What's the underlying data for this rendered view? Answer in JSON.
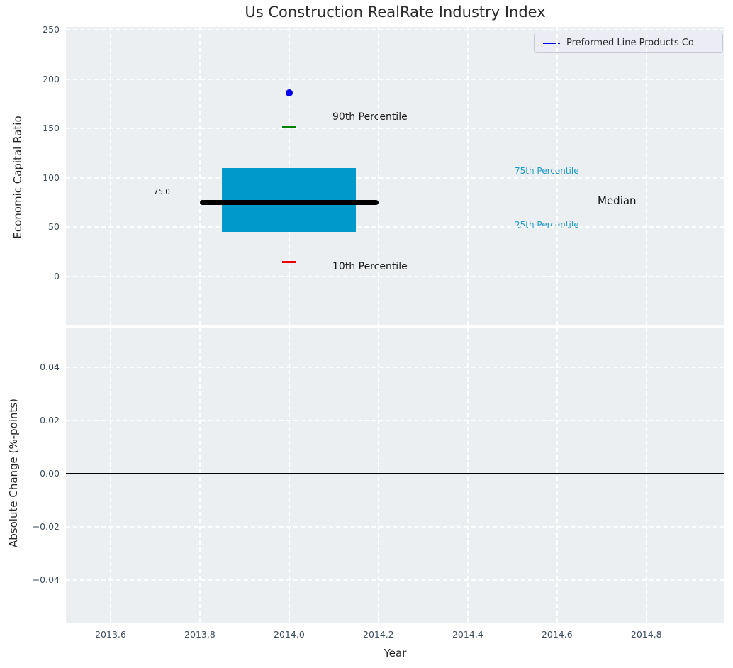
{
  "figure": {
    "title": "Us Construction RealRate Industry Index"
  },
  "legend": {
    "label": "Preformed Line Products Co",
    "line_color": "#0000ee"
  },
  "top_plot": {
    "ylabel": "Economic Capital Ratio",
    "ytick_labels": [
      "250",
      "200",
      "150",
      "100",
      "50",
      "0"
    ],
    "annotations": {
      "p90": "90th Percentile",
      "p10": "10th Percentile",
      "p75": "75th Percentile",
      "p25": "25th Percentile",
      "median": "Median",
      "median_value": "75.0"
    }
  },
  "bottom_plot": {
    "ylabel": "Absolute Change (%-points)",
    "ytick_labels": [
      "0.04",
      "0.02",
      "0.00",
      "−0.02",
      "−0.04"
    ]
  },
  "x_axis": {
    "label": "Year",
    "tick_labels": [
      "2013.6",
      "2013.8",
      "2014.0",
      "2014.2",
      "2014.4",
      "2014.6",
      "2014.8"
    ]
  },
  "colors": {
    "axes_background": "#eceff1",
    "grid": "#ffffff",
    "box_fill": "#0099cc",
    "median_line": "#000000",
    "whisker": "#666666",
    "cap_90th": "#008000",
    "cap_10th": "#ee0000",
    "point_blue": "#0000ee",
    "percentile_label_cyan": "#1e9bc9",
    "tick_label": "#3d4d5e"
  },
  "chart_data": [
    {
      "type": "box",
      "title": "Us Construction RealRate Industry Index",
      "xlabel": "Year",
      "ylabel": "Economic Capital Ratio",
      "xlim": [
        2013.5,
        2014.975
      ],
      "ylim": [
        -50,
        253
      ],
      "xticks": [
        2013.6,
        2013.8,
        2014.0,
        2014.2,
        2014.4,
        2014.6,
        2014.8
      ],
      "yticks": [
        250,
        200,
        150,
        100,
        50,
        0
      ],
      "grid": true,
      "legend_position": "upper right",
      "legend_entries": [
        "Preformed Line Products Co"
      ],
      "boxes": [
        {
          "x": 2014.0,
          "p10": 15,
          "p25": 45,
          "median": 75,
          "p75": 110,
          "p90": 152,
          "box_halfwidth_years": 0.15,
          "median_halfwidth_years": 0.2
        }
      ],
      "points": [
        {
          "series": "Preformed Line Products Co",
          "x": 2014.0,
          "y": 186
        }
      ],
      "annotations": [
        "90th Percentile",
        "10th Percentile",
        "75th Percentile",
        "25th Percentile",
        "Median",
        "75.0"
      ]
    },
    {
      "type": "line",
      "xlabel": "Year",
      "ylabel": "Absolute Change (%-points)",
      "xlim": [
        2013.5,
        2014.975
      ],
      "ylim": [
        -0.056,
        0.055
      ],
      "xticks": [
        2013.6,
        2013.8,
        2014.0,
        2014.2,
        2014.4,
        2014.6,
        2014.8
      ],
      "yticks": [
        0.04,
        0.02,
        0.0,
        -0.02,
        -0.04
      ],
      "grid": true,
      "series": [],
      "zero_line": 0.0
    }
  ]
}
